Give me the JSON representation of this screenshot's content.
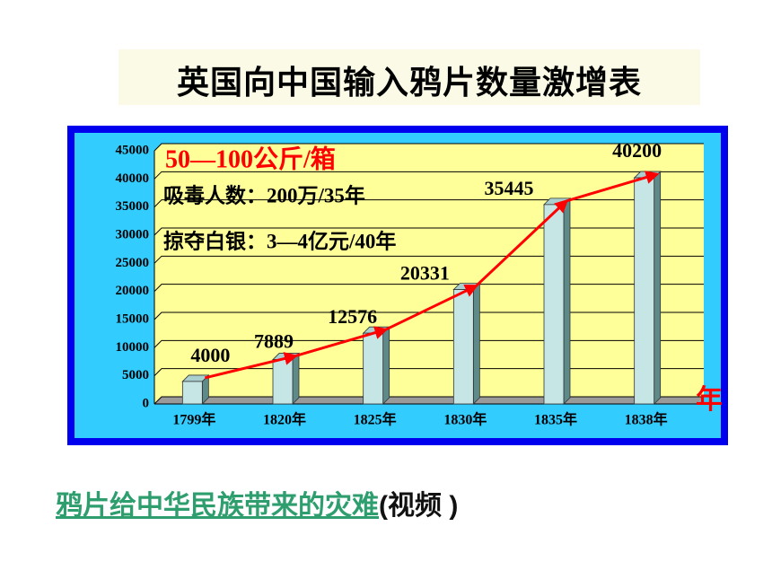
{
  "chart_data": {
    "type": "bar",
    "title": "英国向中国输入鸦片数量激增表",
    "categories": [
      "1799年",
      "1820年",
      "1825年",
      "1830年",
      "1835年",
      "1838年"
    ],
    "values": [
      4000,
      7889,
      12576,
      20331,
      35445,
      40200
    ],
    "color": "#c6e6e6",
    "trend_color": "#ff0000",
    "ylim": [
      0,
      45000
    ],
    "yticks": [
      0,
      5000,
      10000,
      15000,
      20000,
      25000,
      30000,
      35000,
      40000,
      45000
    ],
    "grid": true,
    "x_label": "年",
    "annotations": [
      "50—100公斤/箱",
      "吸毒人数：200万/35年",
      "掠夺白银：3—4亿元/40年"
    ]
  },
  "footer": {
    "link": "鸦片给中华民族带来的灾难",
    "suffix": "(视频 )"
  }
}
